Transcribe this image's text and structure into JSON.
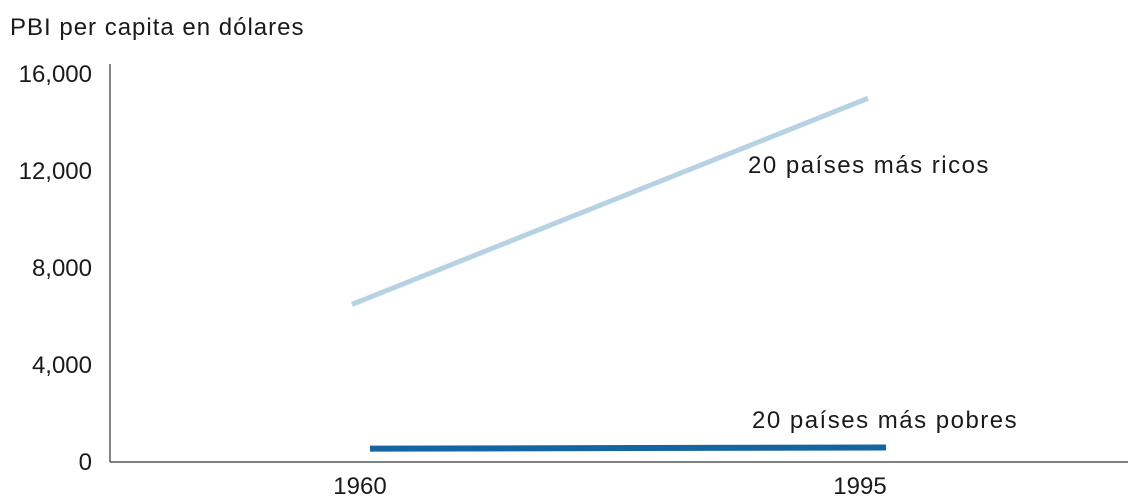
{
  "chart_data": {
    "type": "line",
    "ylabel": "PBI per capita en dólares",
    "xlabel": "",
    "x_categories": [
      "1960",
      "1995"
    ],
    "y_ticks": [
      "16,000",
      "12,000",
      "8,000",
      "4,000",
      "0"
    ],
    "y_tick_values": [
      16000,
      12000,
      8000,
      4000,
      0
    ],
    "ylim": [
      0,
      16000
    ],
    "grid": false,
    "legend": "inline labels",
    "series": [
      {
        "name": "20 países más ricos",
        "x": [
          "1960",
          "1995"
        ],
        "values": [
          6500,
          15000
        ],
        "color": "#b7d2e3"
      },
      {
        "name": "20 países más pobres",
        "x": [
          "1960",
          "1995"
        ],
        "values": [
          550,
          600
        ],
        "color": "#1565a0"
      }
    ]
  }
}
